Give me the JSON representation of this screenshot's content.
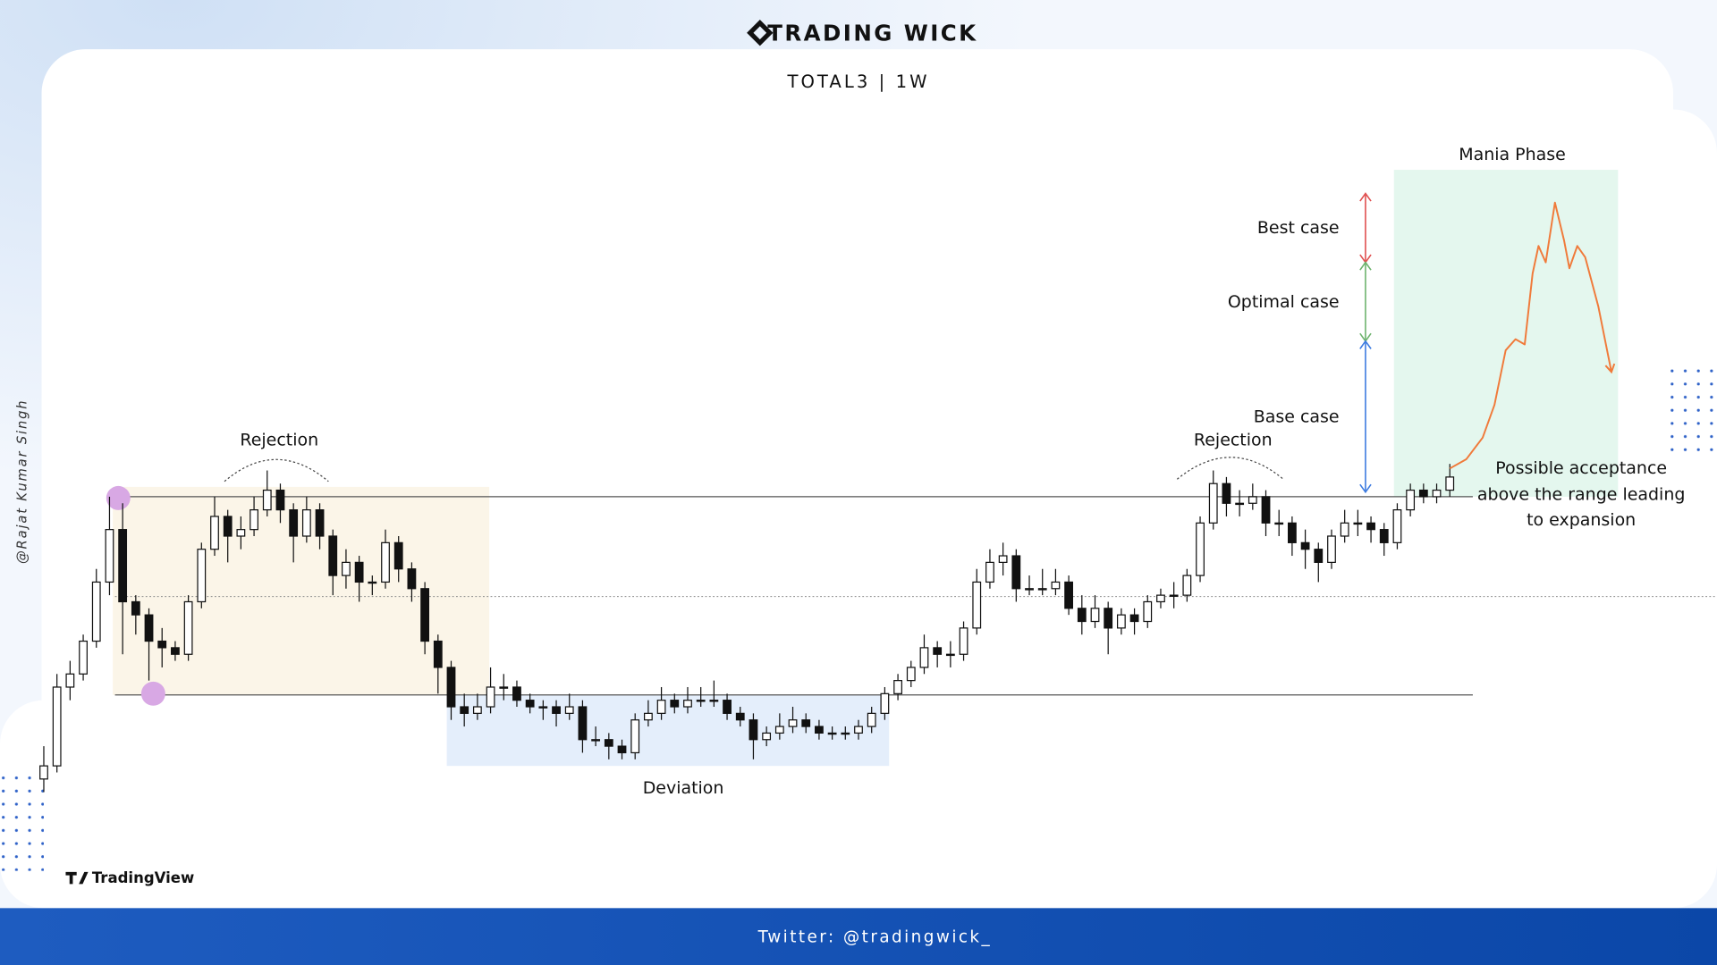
{
  "header": {
    "brand": "TRADING WICK",
    "subtitle": "TOTAL3 | 1W"
  },
  "watermark": "@Rajat Kumar Singh",
  "source": "TradingView",
  "footer": "Twitter: @tradingwick_",
  "chart_data": {
    "type": "candlestick",
    "xlim": [
      -3,
      127
    ],
    "ylim": [
      0,
      100
    ],
    "candles": [
      [
        3,
        8,
        1,
        5
      ],
      [
        5,
        19,
        4,
        17
      ],
      [
        17,
        21,
        15,
        19
      ],
      [
        19,
        25,
        18,
        24
      ],
      [
        24,
        35,
        23,
        33
      ],
      [
        33,
        46,
        31,
        41
      ],
      [
        41,
        45,
        22,
        30
      ],
      [
        30,
        31,
        25,
        28
      ],
      [
        28,
        29,
        18,
        24
      ],
      [
        24,
        26,
        20,
        23
      ],
      [
        23,
        24,
        21,
        22
      ],
      [
        22,
        31,
        21,
        30
      ],
      [
        30,
        39,
        29,
        38
      ],
      [
        38,
        46,
        37,
        43
      ],
      [
        43,
        44,
        36,
        40
      ],
      [
        40,
        43,
        38,
        41
      ],
      [
        41,
        46,
        40,
        44
      ],
      [
        44,
        50,
        43,
        47
      ],
      [
        47,
        48,
        42,
        44
      ],
      [
        44,
        45,
        36,
        40
      ],
      [
        40,
        46,
        39,
        44
      ],
      [
        44,
        45,
        38,
        40
      ],
      [
        40,
        41,
        31,
        34
      ],
      [
        34,
        38,
        32,
        36
      ],
      [
        36,
        37,
        30,
        33
      ],
      [
        33,
        34,
        31,
        33
      ],
      [
        33,
        41,
        32,
        39
      ],
      [
        39,
        40,
        33,
        35
      ],
      [
        35,
        36,
        30,
        32
      ],
      [
        32,
        33,
        22,
        24
      ],
      [
        24,
        25,
        16,
        20
      ],
      [
        20,
        21,
        12,
        14
      ],
      [
        14,
        16,
        11,
        13
      ],
      [
        13,
        16,
        12,
        14
      ],
      [
        14,
        20,
        13,
        17
      ],
      [
        17,
        19,
        15,
        17
      ],
      [
        17,
        18,
        14,
        15
      ],
      [
        15,
        16,
        13,
        14
      ],
      [
        14,
        15,
        12,
        14
      ],
      [
        14,
        15,
        11,
        13
      ],
      [
        13,
        16,
        12,
        14
      ],
      [
        14,
        15,
        7,
        9
      ],
      [
        9,
        11,
        8,
        9
      ],
      [
        9,
        10,
        6,
        8
      ],
      [
        8,
        9,
        6,
        7
      ],
      [
        7,
        13,
        6,
        12
      ],
      [
        12,
        15,
        11,
        13
      ],
      [
        13,
        17,
        12,
        15
      ],
      [
        15,
        16,
        13,
        14
      ],
      [
        14,
        17,
        13,
        15
      ],
      [
        15,
        17,
        14,
        15
      ],
      [
        15,
        18,
        14,
        15
      ],
      [
        15,
        16,
        12,
        13
      ],
      [
        13,
        14,
        11,
        12
      ],
      [
        12,
        13,
        6,
        9
      ],
      [
        9,
        11,
        8,
        10
      ],
      [
        10,
        13,
        9,
        11
      ],
      [
        11,
        14,
        10,
        12
      ],
      [
        12,
        13,
        10,
        11
      ],
      [
        11,
        12,
        9,
        10
      ],
      [
        10,
        11,
        9,
        10
      ],
      [
        10,
        11,
        9,
        10
      ],
      [
        10,
        12,
        9,
        11
      ],
      [
        11,
        14,
        10,
        13
      ],
      [
        13,
        17,
        12,
        16
      ],
      [
        16,
        19,
        15,
        18
      ],
      [
        18,
        21,
        17,
        20
      ],
      [
        20,
        25,
        19,
        23
      ],
      [
        23,
        24,
        20,
        22
      ],
      [
        22,
        24,
        20,
        22
      ],
      [
        22,
        27,
        21,
        26
      ],
      [
        26,
        35,
        25,
        33
      ],
      [
        33,
        38,
        32,
        36
      ],
      [
        36,
        39,
        34,
        37
      ],
      [
        37,
        38,
        30,
        32
      ],
      [
        32,
        34,
        31,
        32
      ],
      [
        32,
        35,
        31,
        32
      ],
      [
        32,
        35,
        31,
        33
      ],
      [
        33,
        34,
        28,
        29
      ],
      [
        29,
        31,
        25,
        27
      ],
      [
        27,
        31,
        26,
        29
      ],
      [
        29,
        30,
        22,
        26
      ],
      [
        26,
        29,
        25,
        28
      ],
      [
        28,
        29,
        25,
        27
      ],
      [
        27,
        31,
        26,
        30
      ],
      [
        30,
        32,
        29,
        31
      ],
      [
        31,
        33,
        29,
        31
      ],
      [
        31,
        35,
        30,
        34
      ],
      [
        34,
        43,
        33,
        42
      ],
      [
        42,
        50,
        41,
        48
      ],
      [
        48,
        49,
        43,
        45
      ],
      [
        45,
        47,
        43,
        45
      ],
      [
        45,
        48,
        44,
        46
      ],
      [
        46,
        47,
        40,
        42
      ],
      [
        42,
        44,
        40,
        42
      ],
      [
        42,
        43,
        37,
        39
      ],
      [
        39,
        41,
        35,
        38
      ],
      [
        38,
        39,
        33,
        36
      ],
      [
        36,
        41,
        35,
        40
      ],
      [
        40,
        44,
        39,
        42
      ],
      [
        42,
        44,
        40,
        42
      ],
      [
        42,
        43,
        39,
        41
      ],
      [
        41,
        42,
        37,
        39
      ],
      [
        39,
        45,
        38,
        44
      ],
      [
        44,
        48,
        43,
        47
      ],
      [
        47,
        48,
        45,
        46
      ],
      [
        46,
        48,
        45,
        47
      ],
      [
        47,
        51,
        46,
        49
      ]
    ],
    "levels": [
      46,
      30.8,
      15.8
    ],
    "level_styles": [
      "solid",
      "dotted",
      "solid"
    ],
    "zones": [
      {
        "from": 5.25,
        "to": 33.9,
        "low": 15.8,
        "high": 47.5,
        "color": "#fbf5e8"
      },
      {
        "from": 30.67,
        "to": 64.33,
        "low": 5,
        "high": 15.8,
        "color": "#e4eefb"
      },
      {
        "from": 102.75,
        "to": 119.8,
        "low": 46,
        "high": 95.8,
        "color": "#e4f7ee"
      }
    ],
    "highlights": {
      "color": "#d8a8e4",
      "points": [
        {
          "x": 5.67,
          "y": 45.8
        },
        {
          "x": 8.33,
          "y": 16
        }
      ]
    },
    "projection": {
      "color": "#f07a3a",
      "x": [
        107,
        108.25,
        109.5,
        110.4,
        111.25,
        112,
        112.7,
        113.3,
        113.75,
        114.3,
        115,
        115.7,
        116.1,
        116.7,
        117.3,
        118.3,
        119.3
      ],
      "values": [
        50.3,
        51.7,
        55,
        60,
        68.3,
        70,
        69.2,
        80,
        84.2,
        81.7,
        90.8,
        85,
        80.8,
        84.2,
        82.5,
        75,
        65
      ]
    },
    "scenarios": [
      {
        "name": "Best case",
        "color": "#e05050",
        "from": 81.7,
        "to": 92.2
      },
      {
        "name": "Optimal case",
        "color": "#6db36d",
        "from": 69.7,
        "to": 81.7
      },
      {
        "name": "Base case",
        "color": "#3d7be0",
        "from": 46.7,
        "to": 69.7
      }
    ],
    "annotations": {
      "rejection_left": "Rejection",
      "rejection_right": "Rejection",
      "deviation": "Deviation",
      "mania": "Mania Phase",
      "acceptance": [
        "Possible acceptance",
        "above the range leading",
        "to expansion"
      ]
    }
  }
}
